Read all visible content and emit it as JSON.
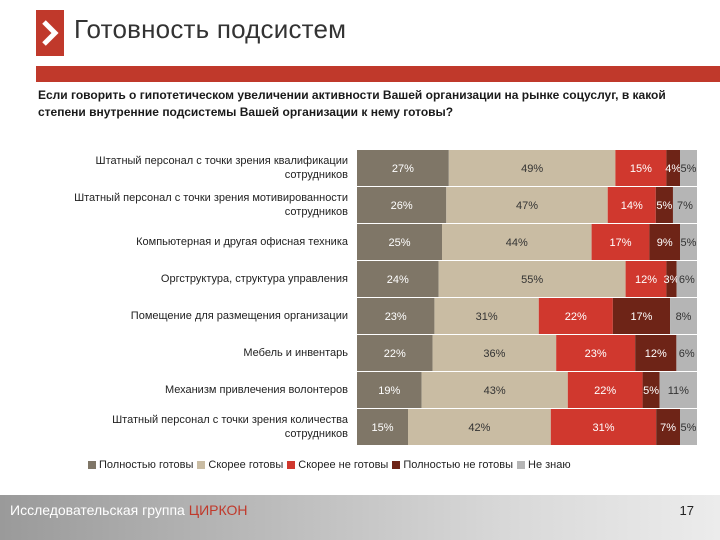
{
  "header": {
    "title": "Готовность подсистем"
  },
  "question": "Если говорить о гипотетическом увеличении активности Вашей организации на рынке соцуслуг, в какой степени внутренние подсистемы Вашей организации к нему готовы?",
  "chart_data": {
    "type": "bar",
    "orientation": "horizontal",
    "stacked": true,
    "normalized": true,
    "categories": [
      "Штатный персонал с точки зрения квалификации сотрудников",
      "Штатный персонал с точки зрения мотивированности сотрудников",
      "Компьютерная и другая офисная техника",
      "Оргструктура, структура управления",
      "Помещение для размещения организации",
      "Мебель и инвентарь",
      "Механизм привлечения волонтеров",
      "Штатный персонал с точки зрения количества сотрудников"
    ],
    "series": [
      {
        "name": "Полностью готовы",
        "color": "#7f7667",
        "label_color": "#ffffff",
        "values": [
          27,
          26,
          25,
          24,
          23,
          22,
          19,
          15
        ]
      },
      {
        "name": "Скорее готовы",
        "color": "#c9bca3",
        "label_color": "#333333",
        "values": [
          49,
          47,
          44,
          55,
          31,
          36,
          43,
          42
        ]
      },
      {
        "name": "Скорее не готовы",
        "color": "#d0382e",
        "label_color": "#ffffff",
        "values": [
          15,
          14,
          17,
          12,
          22,
          23,
          22,
          31
        ]
      },
      {
        "name": "Полностью не готовы",
        "color": "#6e2417",
        "label_color": "#ffffff",
        "values": [
          4,
          5,
          9,
          3,
          17,
          12,
          5,
          7
        ]
      },
      {
        "name": "Не знаю",
        "color": "#b5b5b5",
        "label_color": "#333333",
        "values": [
          5,
          7,
          5,
          6,
          8,
          6,
          11,
          5
        ]
      }
    ],
    "value_suffix": "%",
    "legend_position": "bottom",
    "grid": false
  },
  "footer": {
    "org_prefix": "Исследовательская группа ",
    "org_brand": "ЦИРКОН",
    "page_number": "17"
  }
}
